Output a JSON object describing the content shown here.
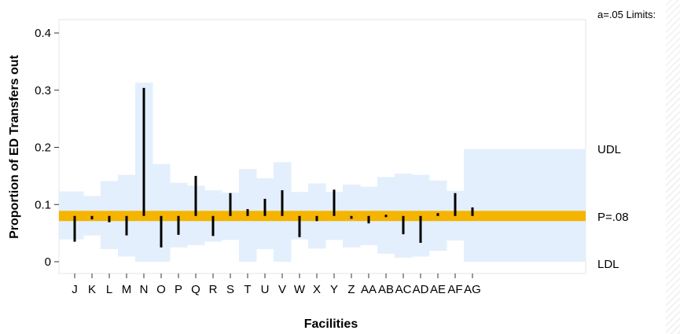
{
  "chart_data": {
    "type": "funnel",
    "title": "",
    "xlabel": "Facilities",
    "ylabel": "Proportion of ED Transfers out",
    "ylim": [
      0,
      0.4
    ],
    "yticks": [
      0,
      0.1,
      0.2,
      0.3,
      0.4
    ],
    "ytick_labels": [
      "0",
      "0.1",
      "0.2",
      "0.3",
      "0.4"
    ],
    "center_line": 0.08,
    "center_label": "P=.08",
    "upper_label": "UDL",
    "lower_label": "LDL",
    "limits_note": "a=.05 Limits:",
    "colors": {
      "band": "#e3effc",
      "center": "#f5b400",
      "bar": "#000000",
      "border": "#e6e6e6"
    },
    "categories": [
      "J",
      "K",
      "L",
      "M",
      "N",
      "O",
      "P",
      "Q",
      "R",
      "S",
      "T",
      "U",
      "V",
      "W",
      "X",
      "Y",
      "Z",
      "AA",
      "AB",
      "AC",
      "AD",
      "AE",
      "AF",
      "AG"
    ],
    "values": [
      0.035,
      0.074,
      0.069,
      0.046,
      0.304,
      0.025,
      0.047,
      0.15,
      0.045,
      0.12,
      0.092,
      0.11,
      0.125,
      0.043,
      0.071,
      0.126,
      0.075,
      0.067,
      0.082,
      0.048,
      0.033,
      0.085,
      0.12,
      0.095
    ],
    "upper_limits": [
      0.123,
      0.115,
      0.141,
      0.152,
      0.313,
      0.171,
      0.138,
      0.133,
      0.125,
      0.121,
      0.162,
      0.146,
      0.174,
      0.122,
      0.137,
      0.122,
      0.135,
      0.131,
      0.148,
      0.154,
      0.152,
      0.142,
      0.124,
      0.197
    ],
    "lower_limits": [
      0.039,
      0.046,
      0.022,
      0.009,
      0.0,
      0.0,
      0.025,
      0.029,
      0.035,
      0.038,
      0.0,
      0.022,
      0.0,
      0.039,
      0.023,
      0.038,
      0.025,
      0.029,
      0.014,
      0.007,
      0.009,
      0.019,
      0.037,
      0.0
    ]
  }
}
